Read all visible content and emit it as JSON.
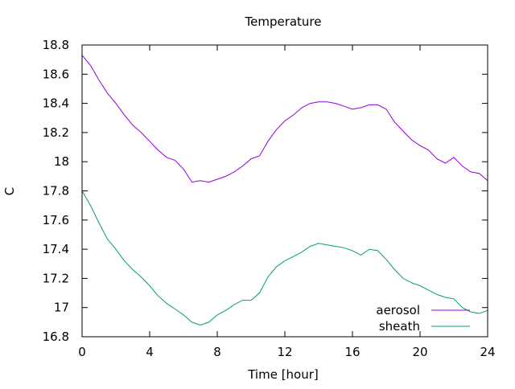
{
  "chart_data": {
    "type": "line",
    "title": "Temperature",
    "xlabel": "Time [hour]",
    "ylabel": "C",
    "xlim": [
      0,
      24
    ],
    "ylim": [
      16.8,
      18.8
    ],
    "xticks": [
      0,
      4,
      8,
      12,
      16,
      20,
      24
    ],
    "yticks": [
      16.8,
      17,
      17.2,
      17.4,
      17.6,
      17.8,
      18,
      18.2,
      18.4,
      18.6,
      18.8
    ],
    "ytick_labels": [
      "16.8",
      "17",
      "17.2",
      "17.4",
      "17.6",
      "17.8",
      "18",
      "18.2",
      "18.4",
      "18.6",
      "18.8"
    ],
    "grid": false,
    "legend_position": "bottom-right",
    "series": [
      {
        "name": "aerosol",
        "color": "#9400d3",
        "x": [
          0,
          0.5,
          1,
          1.5,
          2,
          2.5,
          3,
          3.5,
          4,
          4.5,
          5,
          5.5,
          6,
          6.5,
          7,
          7.5,
          8,
          8.5,
          9,
          9.5,
          10,
          10.5,
          11,
          11.5,
          12,
          12.5,
          13,
          13.5,
          14,
          14.5,
          15,
          15.5,
          16,
          16.5,
          17,
          17.5,
          18,
          18.5,
          19,
          19.5,
          20,
          20.5,
          21,
          21.5,
          22,
          22.5,
          23,
          23.5,
          24
        ],
        "y": [
          18.73,
          18.66,
          18.56,
          18.47,
          18.4,
          18.32,
          18.25,
          18.2,
          18.14,
          18.08,
          18.03,
          18.01,
          17.95,
          17.86,
          17.87,
          17.86,
          17.88,
          17.9,
          17.93,
          17.97,
          18.02,
          18.04,
          18.14,
          18.22,
          18.28,
          18.32,
          18.37,
          18.4,
          18.41,
          18.41,
          18.4,
          18.38,
          18.36,
          18.37,
          18.39,
          18.39,
          18.36,
          18.27,
          18.21,
          18.15,
          18.11,
          18.08,
          18.02,
          17.99,
          18.03,
          17.97,
          17.93,
          17.92,
          17.87
        ]
      },
      {
        "name": "sheath",
        "color": "#009e73",
        "x": [
          0,
          0.5,
          1,
          1.5,
          2,
          2.5,
          3,
          3.5,
          4,
          4.5,
          5,
          5.5,
          6,
          6.5,
          7,
          7.5,
          8,
          8.5,
          9,
          9.5,
          10,
          10.5,
          11,
          11.5,
          12,
          12.5,
          13,
          13.5,
          14,
          14.5,
          15,
          15.5,
          16,
          16.5,
          17,
          17.5,
          18,
          18.5,
          19,
          19.5,
          20,
          20.5,
          21,
          21.5,
          22,
          22.5,
          23,
          23.5,
          24
        ],
        "y": [
          17.8,
          17.7,
          17.58,
          17.47,
          17.4,
          17.32,
          17.26,
          17.21,
          17.15,
          17.08,
          17.03,
          16.99,
          16.95,
          16.9,
          16.88,
          16.9,
          16.95,
          16.98,
          17.02,
          17.05,
          17.05,
          17.1,
          17.21,
          17.28,
          17.32,
          17.35,
          17.38,
          17.42,
          17.44,
          17.43,
          17.42,
          17.41,
          17.39,
          17.36,
          17.4,
          17.39,
          17.33,
          17.26,
          17.2,
          17.17,
          17.15,
          17.12,
          17.09,
          17.07,
          17.06,
          17.0,
          16.97,
          16.96,
          16.98
        ]
      }
    ]
  }
}
